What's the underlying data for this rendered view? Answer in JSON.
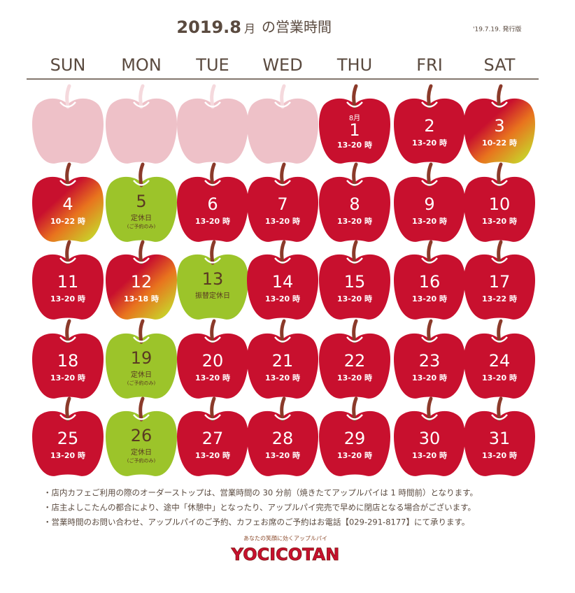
{
  "header": {
    "title_year": "2019.8",
    "title_month": "月",
    "title_rest": "の営業時間",
    "issued": "'19.7.19. 発行版"
  },
  "weekdays": [
    "SUN",
    "MON",
    "TUE",
    "WED",
    "THU",
    "FRI",
    "SAT"
  ],
  "days": [
    null,
    null,
    null,
    null,
    {
      "month": "8月",
      "day": 1,
      "hours": "13-20 時",
      "color": "#c8102e"
    },
    {
      "day": 2,
      "hours": "13-20 時",
      "color": "#c8102e"
    },
    {
      "day": 3,
      "hours": "10-22 時",
      "color": "gradient"
    },
    {
      "day": 4,
      "hours": "10-22 時",
      "color": "gradient"
    },
    {
      "day": 5,
      "hours": "定休日",
      "note": "(ご予約のみ)",
      "color": "#9cc42a"
    },
    {
      "day": 6,
      "hours": "13-20 時",
      "color": "#c8102e"
    },
    {
      "day": 7,
      "hours": "13-20 時",
      "color": "#c8102e"
    },
    {
      "day": 8,
      "hours": "13-20 時",
      "color": "#c8102e"
    },
    {
      "day": 9,
      "hours": "13-20 時",
      "color": "#c8102e"
    },
    {
      "day": 10,
      "hours": "13-20 時",
      "color": "#c8102e"
    },
    {
      "day": 11,
      "hours": "13-20 時",
      "color": "#c8102e"
    },
    {
      "day": 12,
      "hours": "13-18 時",
      "color": "gradient"
    },
    {
      "day": 13,
      "hours": "振替定休日",
      "color": "#9cc42a"
    },
    {
      "day": 14,
      "hours": "13-20 時",
      "color": "#c8102e"
    },
    {
      "day": 15,
      "hours": "13-20 時",
      "color": "#c8102e"
    },
    {
      "day": 16,
      "hours": "13-20 時",
      "color": "#c8102e"
    },
    {
      "day": 17,
      "hours": "13-22 時",
      "color": "#c8102e"
    },
    {
      "day": 18,
      "hours": "13-20 時",
      "color": "#c8102e"
    },
    {
      "day": 19,
      "hours": "定休日",
      "note": "(ご予約のみ)",
      "color": "#9cc42a"
    },
    {
      "day": 20,
      "hours": "13-20 時",
      "color": "#c8102e"
    },
    {
      "day": 21,
      "hours": "13-20 時",
      "color": "#c8102e"
    },
    {
      "day": 22,
      "hours": "13-20 時",
      "color": "#c8102e"
    },
    {
      "day": 23,
      "hours": "13-20 時",
      "color": "#c8102e"
    },
    {
      "day": 24,
      "hours": "13-20 時",
      "color": "#c8102e"
    },
    {
      "day": 25,
      "hours": "13-20 時",
      "color": "#c8102e"
    },
    {
      "day": 26,
      "hours": "定休日",
      "note": "(ご予約のみ)",
      "color": "#9cc42a"
    },
    {
      "day": 27,
      "hours": "13-20 時",
      "color": "#c8102e"
    },
    {
      "day": 28,
      "hours": "13-20 時",
      "color": "#c8102e"
    },
    {
      "day": 29,
      "hours": "13-20 時",
      "color": "#c8102e"
    },
    {
      "day": 30,
      "hours": "13-20 時",
      "color": "#c8102e"
    },
    {
      "day": 31,
      "hours": "13-20 時",
      "color": "#c8102e"
    }
  ],
  "notes": [
    "・店内カフェご利用の際のオーダーストップは、営業時間の 30 分前（焼きたてアップルパイは 1 時間前）となります。",
    "・店主よしこたんの都合により、途中「休憩中」となったり、アップルパイ完売で早めに閉店となる場合がございます。",
    "・営業時間のお問い合わせ、アップルパイのご予約、カフェお席のご予約はお電話【029-291-8177】にて承ります。"
  ],
  "logo": {
    "tagline": "あなたの笑顔に効くアップルパイ",
    "name": "YOCICOTAN"
  }
}
